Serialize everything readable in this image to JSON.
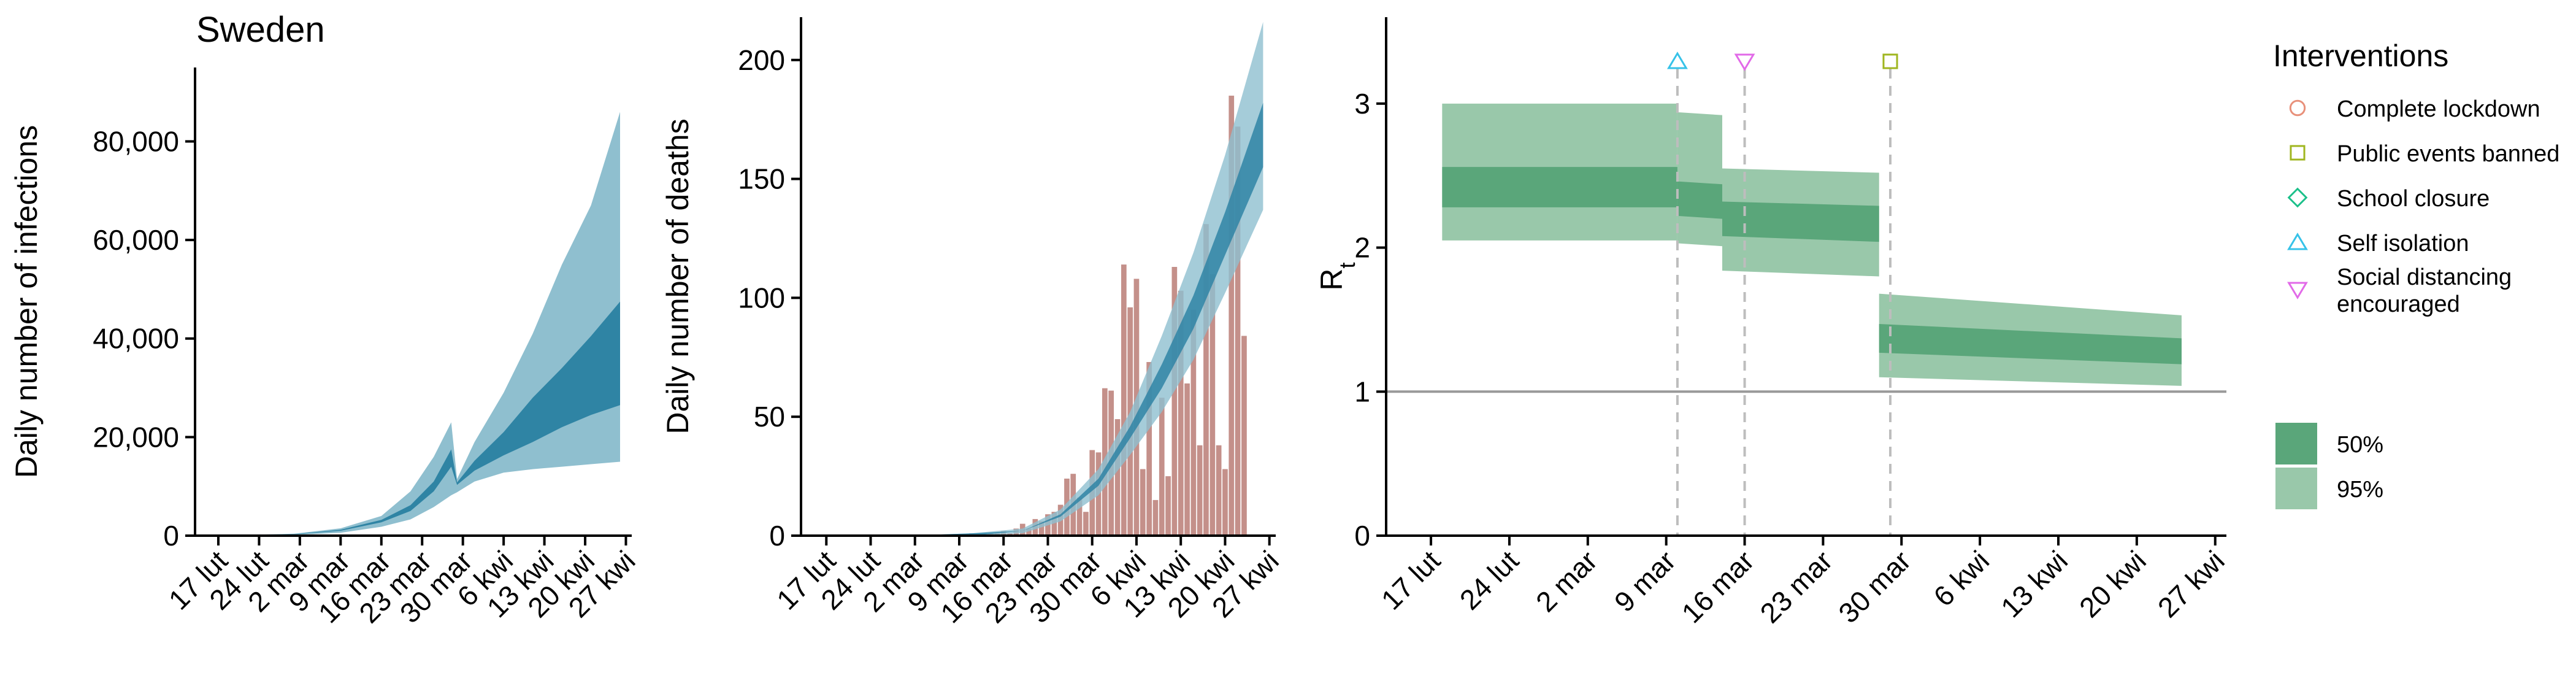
{
  "chart_data": [
    {
      "type": "area",
      "title": "Sweden",
      "xlabel": "",
      "ylabel": "Daily number of infections",
      "ylim": [
        0,
        95000
      ],
      "xlim": [
        "2020-02-13",
        "2020-04-28"
      ],
      "yticks": [
        0,
        20000,
        40000,
        60000,
        80000
      ],
      "ytick_labels": [
        "0",
        "20,000",
        "40,000",
        "60,000",
        "80,000"
      ],
      "xticks": [
        "2020-02-17",
        "2020-02-24",
        "2020-03-02",
        "2020-03-09",
        "2020-03-16",
        "2020-03-23",
        "2020-03-30",
        "2020-04-06",
        "2020-04-13",
        "2020-04-20",
        "2020-04-27"
      ],
      "xtick_labels": [
        "17 lut",
        "24 lut",
        "2 mar",
        "9 mar",
        "16 mar",
        "23 mar",
        "30 mar",
        "6 kwi",
        "13 kwi",
        "20 kwi",
        "27 kwi"
      ],
      "band_dates": [
        "2020-02-21",
        "2020-03-01",
        "2020-03-09",
        "2020-03-16",
        "2020-03-21",
        "2020-03-25",
        "2020-03-28",
        "2020-03-29",
        "2020-04-01",
        "2020-04-06",
        "2020-04-11",
        "2020-04-16",
        "2020-04-21",
        "2020-04-26"
      ],
      "band95_lower": [
        50,
        150,
        600,
        1800,
        3300,
        5800,
        8200,
        8800,
        11000,
        12800,
        13500,
        14000,
        14500,
        15000
      ],
      "band95_upper": [
        120,
        400,
        1500,
        4000,
        9000,
        16000,
        23000,
        11500,
        19000,
        29000,
        41000,
        55000,
        67000,
        86000
      ],
      "band50_lower": [
        70,
        250,
        1000,
        2700,
        5000,
        9000,
        14000,
        10300,
        13200,
        16300,
        19000,
        22000,
        24500,
        26500
      ],
      "band50_upper": [
        90,
        300,
        1200,
        3200,
        6200,
        11000,
        17500,
        10800,
        15200,
        21000,
        28000,
        34000,
        40500,
        47500
      ],
      "color_95": "#8fbfcf",
      "color_50": "#2f84a4",
      "observed_color": "#c4908a"
    },
    {
      "type": "bar",
      "title": "",
      "xlabel": "",
      "ylabel": "Daily number of deaths",
      "ylim": [
        0,
        218
      ],
      "xlim": [
        "2020-02-13",
        "2020-04-28"
      ],
      "yticks": [
        0,
        50,
        100,
        150,
        200
      ],
      "ytick_labels": [
        "0",
        "50",
        "100",
        "150",
        "200"
      ],
      "xticks": [
        "2020-02-17",
        "2020-02-24",
        "2020-03-02",
        "2020-03-09",
        "2020-03-16",
        "2020-03-23",
        "2020-03-30",
        "2020-04-06",
        "2020-04-13",
        "2020-04-20",
        "2020-04-27"
      ],
      "xtick_labels": [
        "17 lut",
        "24 lut",
        "2 mar",
        "9 mar",
        "16 mar",
        "23 mar",
        "30 mar",
        "6 kwi",
        "13 kwi",
        "20 kwi",
        "27 kwi"
      ],
      "bar_start_date": "2020-03-11",
      "bar_values": [
        1,
        0,
        0,
        1,
        1,
        2,
        1,
        3,
        5,
        3,
        7,
        6,
        9,
        10,
        13,
        24,
        26,
        16,
        10,
        36,
        35,
        62,
        61,
        49,
        114,
        96,
        108,
        28,
        73,
        15,
        58,
        25,
        113,
        103,
        64,
        95,
        38,
        131,
        110,
        38,
        28,
        185,
        172,
        84
      ],
      "band_dates": [
        "2020-02-21",
        "2020-03-01",
        "2020-03-11",
        "2020-03-19",
        "2020-03-25",
        "2020-03-31",
        "2020-04-05",
        "2020-04-10",
        "2020-04-15",
        "2020-04-20",
        "2020-04-26"
      ],
      "band95_lower": [
        0,
        0,
        0,
        1,
        6,
        17,
        34,
        52,
        74,
        102,
        137
      ],
      "band95_upper": [
        0,
        0,
        1,
        3,
        11,
        28,
        52,
        84,
        119,
        160,
        216
      ],
      "band50_lower": [
        0,
        0,
        0,
        2,
        8,
        21,
        41,
        62,
        87,
        118,
        155
      ],
      "band50_upper": [
        0,
        0,
        1,
        2,
        9,
        24,
        46,
        72,
        101,
        136,
        182
      ],
      "color_95": "#8fbfcf",
      "color_50": "#2f84a4",
      "bar_color": "#c4908a"
    },
    {
      "type": "area",
      "title": "",
      "xlabel": "",
      "ylabel": "R",
      "ylabel_subscript": "t",
      "ylim": [
        0,
        3.6
      ],
      "xlim": [
        "2020-02-13",
        "2020-04-28"
      ],
      "yticks": [
        0,
        1,
        2,
        3
      ],
      "ytick_labels": [
        "0",
        "1",
        "2",
        "3"
      ],
      "xticks": [
        "2020-02-17",
        "2020-02-24",
        "2020-03-02",
        "2020-03-09",
        "2020-03-16",
        "2020-03-23",
        "2020-03-30",
        "2020-04-06",
        "2020-04-13",
        "2020-04-20",
        "2020-04-27"
      ],
      "xtick_labels": [
        "17 lut",
        "24 lut",
        "2 mar",
        "9 mar",
        "16 mar",
        "23 mar",
        "30 mar",
        "6 kwi",
        "13 kwi",
        "20 kwi",
        "27 kwi"
      ],
      "reference_line": 1,
      "segments": [
        {
          "start": "2020-02-18",
          "end": "2020-03-10",
          "lo95": [
            2.05,
            2.05
          ],
          "hi95": [
            3.0,
            3.0
          ],
          "lo50": [
            2.28,
            2.28
          ],
          "hi50": [
            2.56,
            2.56
          ]
        },
        {
          "start": "2020-03-10",
          "end": "2020-03-14",
          "lo95": [
            2.03,
            2.01
          ],
          "hi95": [
            2.94,
            2.92
          ],
          "lo50": [
            2.22,
            2.2
          ],
          "hi50": [
            2.46,
            2.44
          ]
        },
        {
          "start": "2020-03-14",
          "end": "2020-03-28",
          "lo95": [
            1.84,
            1.8
          ],
          "hi95": [
            2.55,
            2.52
          ],
          "lo50": [
            2.08,
            2.04
          ],
          "hi50": [
            2.32,
            2.29
          ]
        },
        {
          "start": "2020-03-28",
          "end": "2020-04-24",
          "lo95": [
            1.1,
            1.04
          ],
          "hi95": [
            1.68,
            1.53
          ],
          "lo50": [
            1.27,
            1.19
          ],
          "hi50": [
            1.47,
            1.37
          ]
        }
      ],
      "intervention_markers": [
        {
          "date": "2020-03-10",
          "marker": "triangle-up",
          "color": "#36c2e8"
        },
        {
          "date": "2020-03-16",
          "marker": "triangle-down",
          "color": "#e26ae8"
        },
        {
          "date": "2020-03-29",
          "marker": "square",
          "color": "#a0b620"
        }
      ],
      "color_95": "#99c8aa",
      "color_50": "#5aa67a"
    }
  ],
  "legend": {
    "title": "Interventions",
    "items": [
      {
        "label": "Complete lockdown",
        "marker": "circle",
        "color": "#e8907a"
      },
      {
        "label": "Public events banned",
        "marker": "square",
        "color": "#a0b620"
      },
      {
        "label": "School closure",
        "marker": "diamond",
        "color": "#1cc08a"
      },
      {
        "label": "Self isolation",
        "marker": "triangle-up",
        "color": "#36c2e8"
      },
      {
        "label": "Social distancing\n encouraged",
        "marker": "triangle-down",
        "color": "#e26ae8"
      }
    ],
    "bands": [
      {
        "label": "50%",
        "color": "#5aa67a"
      },
      {
        "label": "95%",
        "color": "#99c8aa"
      }
    ]
  }
}
